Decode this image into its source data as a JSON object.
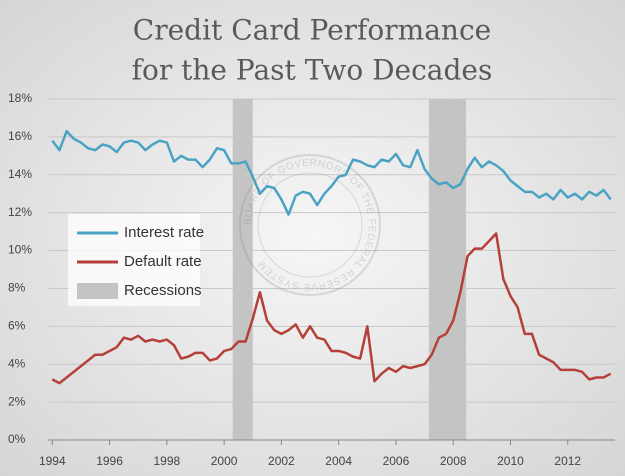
{
  "chart_data": {
    "type": "line",
    "title": [
      "Credit Card Performance",
      "for the Past Two Decades"
    ],
    "watermark": "BOARD OF GOVERNORS OF THE FEDERAL RESERVE SYSTEM",
    "x": [
      1994,
      1994.25,
      1994.5,
      1994.75,
      1995,
      1995.25,
      1995.5,
      1995.75,
      1996,
      1996.25,
      1996.5,
      1996.75,
      1997,
      1997.25,
      1997.5,
      1997.75,
      1998,
      1998.25,
      1998.5,
      1998.75,
      1999,
      1999.25,
      1999.5,
      1999.75,
      2000,
      2000.25,
      2000.5,
      2000.75,
      2001,
      2001.25,
      2001.5,
      2001.75,
      2002,
      2002.25,
      2002.5,
      2002.75,
      2003,
      2003.25,
      2003.5,
      2003.75,
      2004,
      2004.25,
      2004.5,
      2004.75,
      2005,
      2005.25,
      2005.5,
      2005.75,
      2006,
      2006.25,
      2006.5,
      2006.75,
      2007,
      2007.25,
      2007.5,
      2007.75,
      2008,
      2008.25,
      2008.5,
      2008.75,
      2009,
      2009.25,
      2009.5,
      2009.75,
      2010,
      2010.25,
      2010.5,
      2010.75,
      2011,
      2011.25,
      2011.5,
      2011.75,
      2012,
      2012.25,
      2012.5,
      2012.75,
      2013,
      2013.25,
      2013.5
    ],
    "series": [
      {
        "name": "Interest rate",
        "color": "#4aa3c4",
        "values": [
          15.8,
          15.3,
          16.3,
          15.9,
          15.7,
          15.4,
          15.3,
          15.6,
          15.5,
          15.2,
          15.7,
          15.8,
          15.7,
          15.3,
          15.6,
          15.8,
          15.7,
          14.7,
          15.0,
          14.8,
          14.8,
          14.4,
          14.8,
          15.4,
          15.3,
          14.6,
          14.6,
          14.7,
          13.9,
          13.0,
          13.4,
          13.3,
          12.7,
          11.9,
          12.9,
          13.1,
          13.0,
          12.4,
          13.0,
          13.4,
          13.9,
          14.0,
          14.8,
          14.7,
          14.5,
          14.4,
          14.8,
          14.7,
          15.1,
          14.5,
          14.4,
          15.3,
          14.3,
          13.8,
          13.5,
          13.6,
          13.3,
          13.5,
          14.3,
          14.9,
          14.4,
          14.7,
          14.5,
          14.2,
          13.7,
          13.4,
          13.1,
          13.1,
          12.8,
          13.0,
          12.7,
          13.2,
          12.8,
          13.0,
          12.7,
          13.1,
          12.9,
          13.2,
          12.7
        ]
      },
      {
        "name": "Default rate",
        "color": "#b5403a",
        "values": [
          3.2,
          3.0,
          3.3,
          3.6,
          3.9,
          4.2,
          4.5,
          4.5,
          4.7,
          4.9,
          5.4,
          5.3,
          5.5,
          5.2,
          5.3,
          5.2,
          5.3,
          5.0,
          4.3,
          4.4,
          4.6,
          4.6,
          4.2,
          4.3,
          4.7,
          4.8,
          5.2,
          5.2,
          6.4,
          7.8,
          6.3,
          5.8,
          5.6,
          5.8,
          6.1,
          5.4,
          6.0,
          5.4,
          5.3,
          4.7,
          4.7,
          4.6,
          4.4,
          4.3,
          6.0,
          3.1,
          3.5,
          3.8,
          3.6,
          3.9,
          3.8,
          3.9,
          4.0,
          4.5,
          5.4,
          5.6,
          6.3,
          7.8,
          9.7,
          10.1,
          10.1,
          10.5,
          10.9,
          8.5,
          7.6,
          7.0,
          5.6,
          5.6,
          4.5,
          4.3,
          4.1,
          3.7,
          3.7,
          3.7,
          3.6,
          3.2,
          3.3,
          3.3,
          3.5
        ]
      }
    ],
    "recessions": {
      "name": "Recessions",
      "color": "#c4c4c4",
      "spans": [
        [
          2000.3,
          2001.0
        ],
        [
          2007.15,
          2008.45
        ]
      ]
    },
    "xlim": [
      1993.85,
      2013.65
    ],
    "xticks": [
      1994,
      1996,
      1998,
      2000,
      2002,
      2004,
      2006,
      2008,
      2010,
      2012
    ],
    "ylim": [
      0,
      18
    ],
    "yticks": [
      {
        "value": 0,
        "label": "0%"
      },
      {
        "value": 2,
        "label": "2%"
      },
      {
        "value": 4,
        "label": "4%"
      },
      {
        "value": 6,
        "label": "6%"
      },
      {
        "value": 8,
        "label": "8%"
      },
      {
        "value": 10,
        "label": "10%"
      },
      {
        "value": 12,
        "label": "12%"
      },
      {
        "value": 14,
        "label": "14%"
      },
      {
        "value": 16,
        "label": "16%"
      },
      {
        "value": 18,
        "label": "18%"
      }
    ],
    "grid": true,
    "legend": "left"
  }
}
